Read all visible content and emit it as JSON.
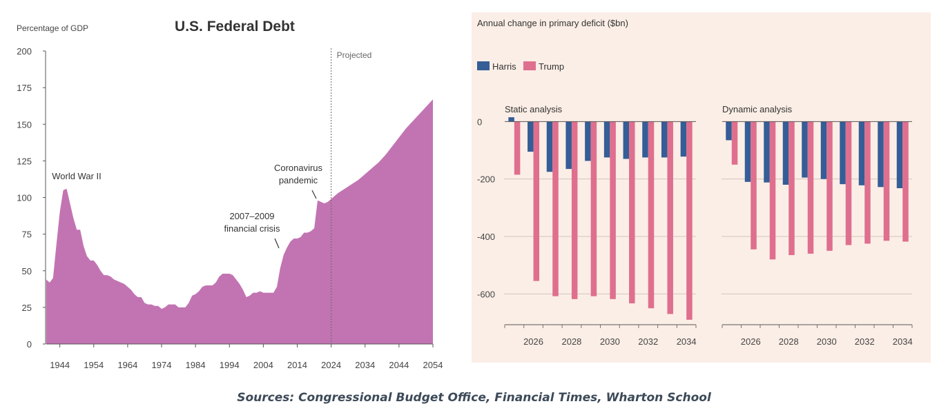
{
  "chart_data": [
    {
      "type": "area",
      "title": "U.S. Federal Debt",
      "ylabel": "Percentage of GDP",
      "xlabel": "",
      "xlim": [
        1940,
        2054
      ],
      "ylim": [
        0,
        200
      ],
      "yticks": [
        0,
        25,
        50,
        75,
        100,
        125,
        150,
        175,
        200
      ],
      "xticks": [
        1944,
        1954,
        1964,
        1974,
        1984,
        1994,
        2004,
        2014,
        2024,
        2034,
        2044,
        2054
      ],
      "grid": false,
      "color": "#c274b2",
      "projection_line": {
        "x": 2024,
        "label": "Projected"
      },
      "annotations": [
        {
          "text": [
            "World War II"
          ],
          "x": 1946,
          "y": 106
        },
        {
          "text": [
            "2007–2009",
            "financial crisis"
          ],
          "x": 2009,
          "y": 65
        },
        {
          "text": [
            "Coronavirus",
            "pandemic"
          ],
          "x": 2020,
          "y": 100
        }
      ],
      "series": [
        {
          "x": [
            1940,
            1941,
            1942,
            1943,
            1944,
            1945,
            1946,
            1947,
            1948,
            1949,
            1950,
            1951,
            1952,
            1953,
            1954,
            1955,
            1956,
            1957,
            1958,
            1959,
            1960,
            1961,
            1962,
            1963,
            1964,
            1965,
            1966,
            1967,
            1968,
            1969,
            1970,
            1971,
            1972,
            1973,
            1974,
            1975,
            1976,
            1977,
            1978,
            1979,
            1980,
            1981,
            1982,
            1983,
            1984,
            1985,
            1986,
            1987,
            1988,
            1989,
            1990,
            1991,
            1992,
            1993,
            1994,
            1995,
            1996,
            1997,
            1998,
            1999,
            2000,
            2001,
            2002,
            2003,
            2004,
            2005,
            2006,
            2007,
            2008,
            2009,
            2010,
            2011,
            2012,
            2013,
            2014,
            2015,
            2016,
            2017,
            2018,
            2019,
            2020,
            2021,
            2022,
            2023,
            2024,
            2026,
            2028,
            2030,
            2032,
            2034,
            2036,
            2038,
            2040,
            2042,
            2044,
            2046,
            2048,
            2050,
            2052,
            2054
          ],
          "values": [
            44,
            42,
            45,
            68,
            90,
            105,
            106,
            96,
            86,
            78,
            78,
            67,
            60,
            57,
            57,
            54,
            50,
            47,
            47,
            46,
            44,
            43,
            42,
            41,
            39,
            37,
            34,
            32,
            32,
            28,
            27,
            27,
            26,
            26,
            24,
            25,
            27,
            27,
            27,
            25,
            25,
            25,
            28,
            33,
            34,
            36,
            39,
            40,
            40,
            40,
            42,
            46,
            48,
            48,
            48,
            47,
            44,
            41,
            37,
            32,
            33,
            35,
            35,
            36,
            35,
            35,
            35,
            35,
            39,
            52,
            61,
            66,
            70,
            72,
            72,
            73,
            76,
            76,
            77,
            79,
            98,
            97,
            96,
            97,
            99,
            103,
            106,
            109,
            112,
            116,
            120,
            124,
            129,
            135,
            141,
            147,
            152,
            157,
            162,
            167
          ]
        }
      ]
    },
    {
      "type": "bar",
      "title": "Annual change in primary deficit ($bn)",
      "legend": [
        "Harris",
        "Trump"
      ],
      "legend_position": "top-left",
      "colors": {
        "Harris": "#355d96",
        "Trump": "#df6f8e"
      },
      "ylim": [
        -700,
        20
      ],
      "yticks": [
        0,
        -200,
        -400,
        -600
      ],
      "grid": true,
      "panels": [
        {
          "title": "Static analysis",
          "categories": [
            2025,
            2026,
            2027,
            2028,
            2029,
            2030,
            2031,
            2032,
            2033,
            2034
          ],
          "xtick_labels": [
            "2026",
            "2028",
            "2030",
            "2032",
            "2034"
          ],
          "series": [
            {
              "name": "Harris",
              "values": [
                15,
                -105,
                -175,
                -165,
                -137,
                -125,
                -130,
                -125,
                -125,
                -122
              ]
            },
            {
              "name": "Trump",
              "values": [
                -185,
                -555,
                -608,
                -618,
                -608,
                -618,
                -633,
                -650,
                -670,
                -690
              ]
            }
          ]
        },
        {
          "title": "Dynamic analysis",
          "categories": [
            2025,
            2026,
            2027,
            2028,
            2029,
            2030,
            2031,
            2032,
            2033,
            2034
          ],
          "xtick_labels": [
            "2026",
            "2028",
            "2030",
            "2032",
            "2034"
          ],
          "series": [
            {
              "name": "Harris",
              "values": [
                -65,
                -210,
                -212,
                -220,
                -195,
                -200,
                -218,
                -222,
                -228,
                -232
              ]
            },
            {
              "name": "Trump",
              "values": [
                -150,
                -445,
                -480,
                -465,
                -460,
                -450,
                -430,
                -425,
                -415,
                -418
              ]
            }
          ]
        }
      ]
    }
  ],
  "source_text": "Sources: Congressional Budget Office, Financial Times, Wharton School"
}
